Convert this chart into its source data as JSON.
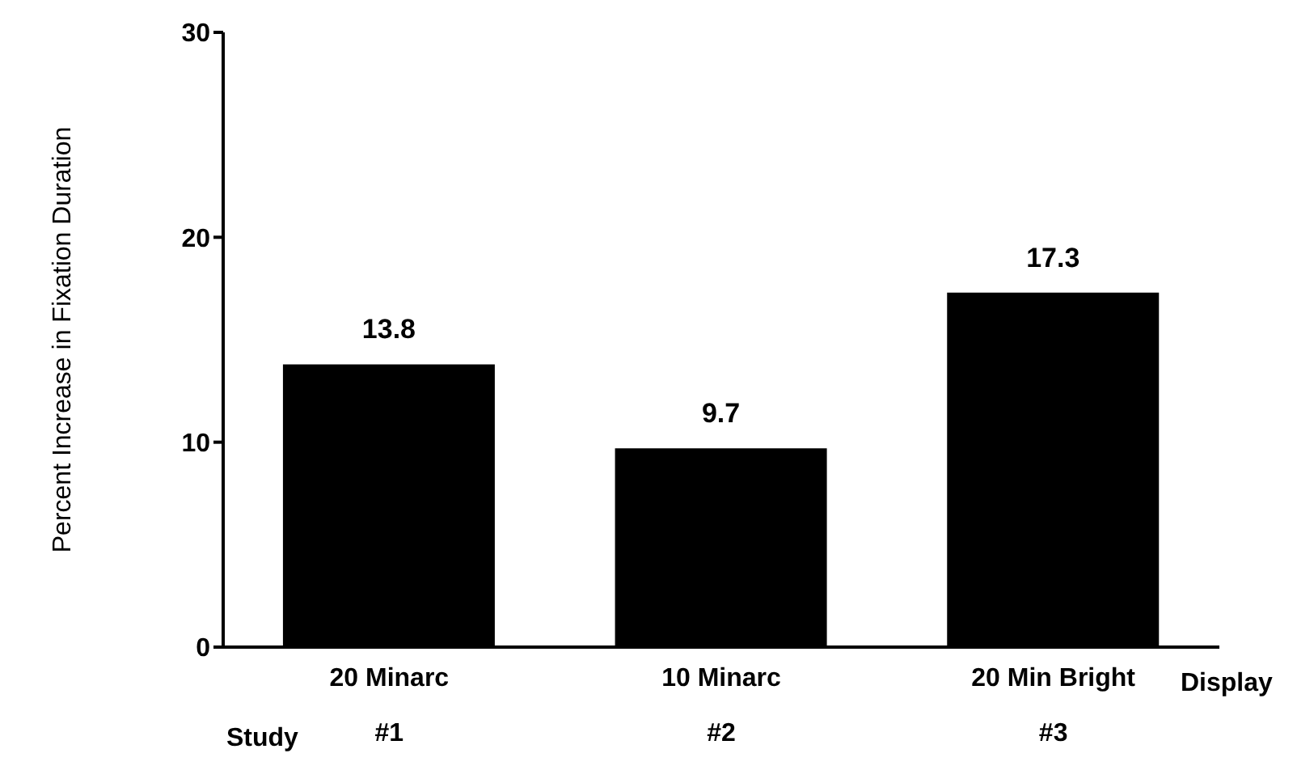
{
  "chart_data": {
    "type": "bar",
    "ylabel": "Percent Increase in Fixation Duration",
    "xlabel": "Display",
    "categories": [
      "20 Minarc\n#1",
      "10 Minarc\n#2",
      "20 Min Bright\n#3"
    ],
    "values": [
      13.8,
      9.7,
      17.3
    ],
    "color": "#000000",
    "data_labels": true,
    "ylim": [
      0,
      30
    ],
    "yticks": [
      0,
      10,
      20,
      30
    ],
    "grid": false,
    "annotations": [
      "Study"
    ]
  }
}
